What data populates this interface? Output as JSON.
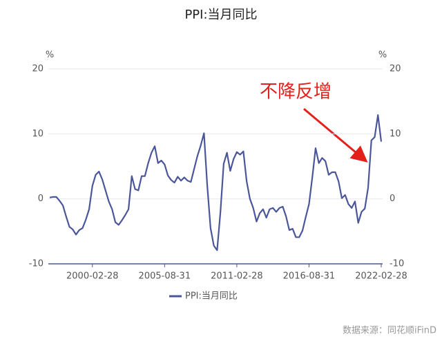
{
  "chart_data": {
    "type": "line",
    "title": "PPI:当月同比",
    "y_unit": "%",
    "y2_unit": "%",
    "x": [
      "1996-11-30",
      "1997-02-28",
      "1997-05-31",
      "1997-08-31",
      "1997-11-30",
      "1998-02-28",
      "1998-05-31",
      "1998-08-31",
      "1998-11-30",
      "1999-02-28",
      "1999-05-31",
      "1999-08-31",
      "1999-11-30",
      "2000-02-28",
      "2000-05-31",
      "2000-08-31",
      "2000-11-30",
      "2001-02-28",
      "2001-05-31",
      "2001-08-31",
      "2001-11-30",
      "2002-02-28",
      "2002-05-31",
      "2002-08-31",
      "2002-11-30",
      "2003-02-28",
      "2003-05-31",
      "2003-08-31",
      "2003-11-30",
      "2004-02-28",
      "2004-05-31",
      "2004-08-31",
      "2004-11-30",
      "2005-02-28",
      "2005-05-31",
      "2005-08-31",
      "2005-11-30",
      "2006-02-28",
      "2006-05-31",
      "2006-08-31",
      "2006-11-30",
      "2007-02-28",
      "2007-05-31",
      "2007-08-31",
      "2007-11-30",
      "2008-02-28",
      "2008-05-31",
      "2008-08-31",
      "2008-11-30",
      "2009-02-28",
      "2009-05-31",
      "2009-08-31",
      "2009-11-30",
      "2010-02-28",
      "2010-05-31",
      "2010-08-31",
      "2010-11-30",
      "2011-02-28",
      "2011-05-31",
      "2011-08-31",
      "2011-11-30",
      "2012-02-28",
      "2012-05-31",
      "2012-08-31",
      "2012-11-30",
      "2013-02-28",
      "2013-05-31",
      "2013-08-31",
      "2013-11-30",
      "2014-02-28",
      "2014-05-31",
      "2014-08-31",
      "2014-11-30",
      "2015-02-28",
      "2015-05-31",
      "2015-08-31",
      "2015-11-30",
      "2016-02-28",
      "2016-05-31",
      "2016-08-31",
      "2016-11-30",
      "2017-02-28",
      "2017-05-31",
      "2017-08-31",
      "2017-11-30",
      "2018-02-28",
      "2018-05-31",
      "2018-08-31",
      "2018-11-30",
      "2019-02-28",
      "2019-05-31",
      "2019-08-31",
      "2019-11-30",
      "2020-02-28",
      "2020-05-31",
      "2020-08-31",
      "2020-11-30",
      "2021-02-28",
      "2021-05-31",
      "2021-08-31",
      "2021-11-30",
      "2022-02-28"
    ],
    "series": [
      {
        "name": "PPI:当月同比",
        "color": "#4a5699",
        "values": [
          0.2,
          0.3,
          0.3,
          -0.3,
          -1.0,
          -2.7,
          -4.3,
          -4.7,
          -5.5,
          -4.8,
          -4.5,
          -3.2,
          -1.6,
          2.0,
          3.7,
          4.2,
          3.0,
          1.3,
          -0.4,
          -1.6,
          -3.6,
          -4.0,
          -3.3,
          -2.5,
          -1.6,
          3.5,
          1.5,
          1.3,
          3.5,
          3.5,
          5.5,
          7.1,
          8.1,
          5.5,
          5.9,
          5.3,
          3.6,
          2.9,
          2.5,
          3.4,
          2.8,
          3.3,
          2.8,
          2.6,
          4.6,
          6.6,
          8.2,
          10.1,
          2.0,
          -4.5,
          -7.2,
          -7.9,
          -2.1,
          5.4,
          7.1,
          4.3,
          6.1,
          7.2,
          6.8,
          7.3,
          2.7,
          0.0,
          -1.4,
          -3.5,
          -2.2,
          -1.6,
          -2.9,
          -1.6,
          -1.4,
          -2.0,
          -1.4,
          -1.2,
          -2.7,
          -4.8,
          -4.6,
          -5.9,
          -5.9,
          -4.9,
          -2.8,
          -0.8,
          3.3,
          7.8,
          5.5,
          6.3,
          5.8,
          3.7,
          4.1,
          4.1,
          2.7,
          0.1,
          0.6,
          -0.8,
          -1.4,
          -0.4,
          -3.7,
          -2.0,
          -1.5,
          1.7,
          9.0,
          9.5,
          12.9,
          8.8
        ]
      }
    ],
    "xticks": [
      "2000-02-28",
      "2005-08-31",
      "2011-02-28",
      "2016-08-31",
      "2022-02-28"
    ],
    "ylim": [
      -10,
      20
    ],
    "yticks": [
      -10,
      0,
      10,
      20
    ],
    "y2lim": [
      -10,
      20
    ],
    "y2ticks": [
      -10,
      0,
      10,
      20
    ],
    "grid": true,
    "legend": "bottom",
    "annotation": "不降反增",
    "source": "数据来源：同花顺iFinD"
  }
}
